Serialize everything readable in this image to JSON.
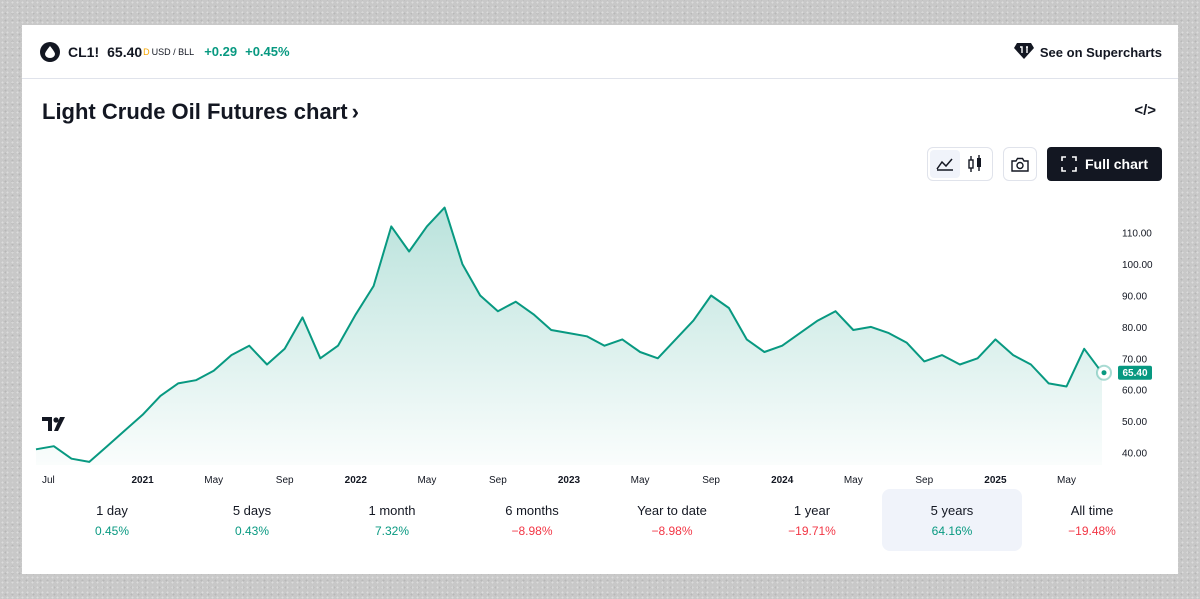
{
  "header": {
    "symbol": "CL1!",
    "price": "65.40",
    "flag": "D",
    "unit": "USD / BLL",
    "change_abs": "+0.29",
    "change_pct": "+0.45%",
    "supercharts_label": "See on Supercharts"
  },
  "title": "Light Crude Oil Futures chart",
  "toolbar": {
    "full_chart_label": "Full chart"
  },
  "colors": {
    "line": "#089981",
    "positive": "#089981",
    "negative": "#f23645"
  },
  "chart_data": {
    "type": "area",
    "y_ticks": [
      "110.00",
      "100.00",
      "90.00",
      "80.00",
      "70.00",
      "60.00",
      "50.00",
      "40.00"
    ],
    "x_ticks": [
      "Jul",
      "2021",
      "May",
      "Sep",
      "2022",
      "May",
      "Sep",
      "2023",
      "May",
      "Sep",
      "2024",
      "May",
      "Sep",
      "2025",
      "May"
    ],
    "ylim": [
      36,
      122
    ],
    "last_price_label": "65.40",
    "x": [
      "2020-07",
      "2020-08",
      "2020-09",
      "2020-10",
      "2020-11",
      "2020-12",
      "2021-01",
      "2021-02",
      "2021-03",
      "2021-04",
      "2021-05",
      "2021-06",
      "2021-07",
      "2021-08",
      "2021-09",
      "2021-10",
      "2021-11",
      "2021-12",
      "2022-01",
      "2022-02",
      "2022-03",
      "2022-04",
      "2022-05",
      "2022-06",
      "2022-07",
      "2022-08",
      "2022-09",
      "2022-10",
      "2022-11",
      "2022-12",
      "2023-01",
      "2023-02",
      "2023-03",
      "2023-04",
      "2023-05",
      "2023-06",
      "2023-07",
      "2023-08",
      "2023-09",
      "2023-10",
      "2023-11",
      "2023-12",
      "2024-01",
      "2024-02",
      "2024-03",
      "2024-04",
      "2024-05",
      "2024-06",
      "2024-07",
      "2024-08",
      "2024-09",
      "2024-10",
      "2024-11",
      "2024-12",
      "2025-01",
      "2025-02",
      "2025-03",
      "2025-04",
      "2025-05",
      "2025-06",
      "2025-07"
    ],
    "values": [
      41,
      42,
      38,
      37,
      42,
      47,
      52,
      58,
      62,
      63,
      66,
      71,
      74,
      68,
      73,
      83,
      70,
      74,
      84,
      93,
      112,
      104,
      112,
      118,
      100,
      90,
      85,
      88,
      84,
      79,
      78,
      77,
      74,
      76,
      72,
      70,
      76,
      82,
      90,
      86,
      76,
      72,
      74,
      78,
      82,
      85,
      79,
      80,
      78,
      75,
      69,
      71,
      68,
      70,
      76,
      71,
      68,
      62,
      61,
      73,
      65.4
    ]
  },
  "periods": [
    {
      "label": "1 day",
      "value": "0.45%",
      "sign": "pos"
    },
    {
      "label": "5 days",
      "value": "0.43%",
      "sign": "pos"
    },
    {
      "label": "1 month",
      "value": "7.32%",
      "sign": "pos"
    },
    {
      "label": "6 months",
      "value": "−8.98%",
      "sign": "neg"
    },
    {
      "label": "Year to date",
      "value": "−8.98%",
      "sign": "neg"
    },
    {
      "label": "1 year",
      "value": "−19.71%",
      "sign": "neg"
    },
    {
      "label": "5 years",
      "value": "64.16%",
      "sign": "pos",
      "active": true
    },
    {
      "label": "All time",
      "value": "−19.48%",
      "sign": "neg"
    }
  ]
}
